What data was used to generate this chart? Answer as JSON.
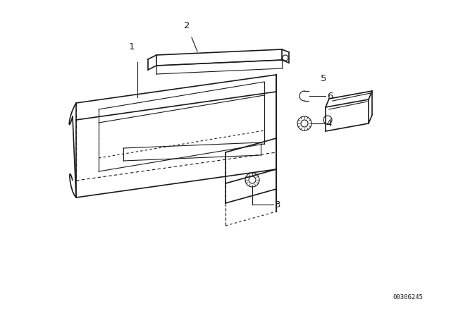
{
  "bg_color": "#ffffff",
  "line_color": "#1a1a1a",
  "fig_width": 6.4,
  "fig_height": 4.48,
  "dpi": 100,
  "diagram_id": "00306245"
}
